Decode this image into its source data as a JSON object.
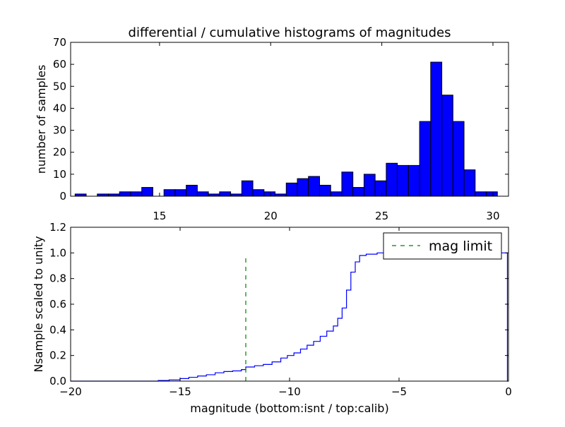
{
  "colors": {
    "bar_fill": "#0000ff",
    "bar_edge": "#000000",
    "cumulative_line": "#0000ff",
    "mag_limit_line": "#008000"
  },
  "chart_data": [
    {
      "type": "bar",
      "title": "differential / cumulative histograms of magnitudes",
      "xlabel": "",
      "ylabel": "number of samples",
      "xlim": [
        11.0,
        30.7
      ],
      "ylim": [
        0,
        70
      ],
      "xticks": [
        15,
        20,
        25,
        30
      ],
      "yticks": [
        0,
        10,
        20,
        30,
        40,
        50,
        60,
        70
      ],
      "x_axis_ticks_position": "top and bottom, labels on bottom",
      "bin_width": 0.5,
      "bin_starts": [
        11.2,
        11.7,
        12.2,
        12.7,
        13.2,
        13.7,
        14.2,
        14.7,
        15.2,
        15.7,
        16.2,
        16.7,
        17.2,
        17.7,
        18.2,
        18.7,
        19.2,
        19.7,
        20.2,
        20.7,
        21.2,
        21.7,
        22.2,
        22.7,
        23.2,
        23.7,
        24.2,
        24.7,
        25.2,
        25.7,
        26.2,
        26.7,
        27.2,
        27.7,
        28.2,
        28.7,
        29.2,
        29.7
      ],
      "values": [
        1,
        0,
        1,
        1,
        2,
        2,
        4,
        0,
        3,
        3,
        5,
        2,
        1,
        2,
        1,
        7,
        3,
        2,
        1,
        6,
        8,
        9,
        5,
        2,
        11,
        4,
        10,
        7,
        15,
        14,
        14,
        34,
        61,
        46,
        34,
        12,
        2,
        2
      ]
    },
    {
      "type": "line",
      "line_style": "step",
      "title": "",
      "xlabel": "magnitude (bottom:isnt / top:calib)",
      "ylabel": "Nsample scaled to unity",
      "xlim": [
        -20,
        0
      ],
      "ylim": [
        0.0,
        1.2
      ],
      "xticks": [
        -20,
        -15,
        -10,
        -5,
        0
      ],
      "yticks": [
        0.0,
        0.2,
        0.4,
        0.6,
        0.8,
        1.0,
        1.2
      ],
      "legend_position": "top-right",
      "series": [
        {
          "name": "",
          "style": "step",
          "color": "#0000ff",
          "x": [
            -20.0,
            -16.0,
            -15.5,
            -15.0,
            -14.6,
            -14.2,
            -13.8,
            -13.4,
            -13.0,
            -12.6,
            -12.2,
            -12.0,
            -11.6,
            -11.2,
            -10.8,
            -10.4,
            -10.1,
            -9.8,
            -9.5,
            -9.2,
            -8.9,
            -8.6,
            -8.3,
            -8.0,
            -7.8,
            -7.6,
            -7.4,
            -7.2,
            -7.0,
            -6.8,
            -6.5,
            -6.0,
            -5.5,
            -5.0,
            -0.1,
            -0.05
          ],
          "y": [
            0.0,
            0.005,
            0.01,
            0.02,
            0.03,
            0.04,
            0.05,
            0.065,
            0.075,
            0.08,
            0.09,
            0.11,
            0.12,
            0.13,
            0.15,
            0.18,
            0.2,
            0.22,
            0.25,
            0.28,
            0.31,
            0.35,
            0.39,
            0.43,
            0.49,
            0.57,
            0.71,
            0.85,
            0.93,
            0.98,
            0.99,
            1.0,
            1.0,
            1.0,
            1.0,
            0.0
          ]
        },
        {
          "name": "mag limit",
          "style": "dashed",
          "color": "#008000",
          "x": [
            -12.0,
            -12.0
          ],
          "y": [
            0.0,
            0.97
          ]
        }
      ]
    }
  ]
}
